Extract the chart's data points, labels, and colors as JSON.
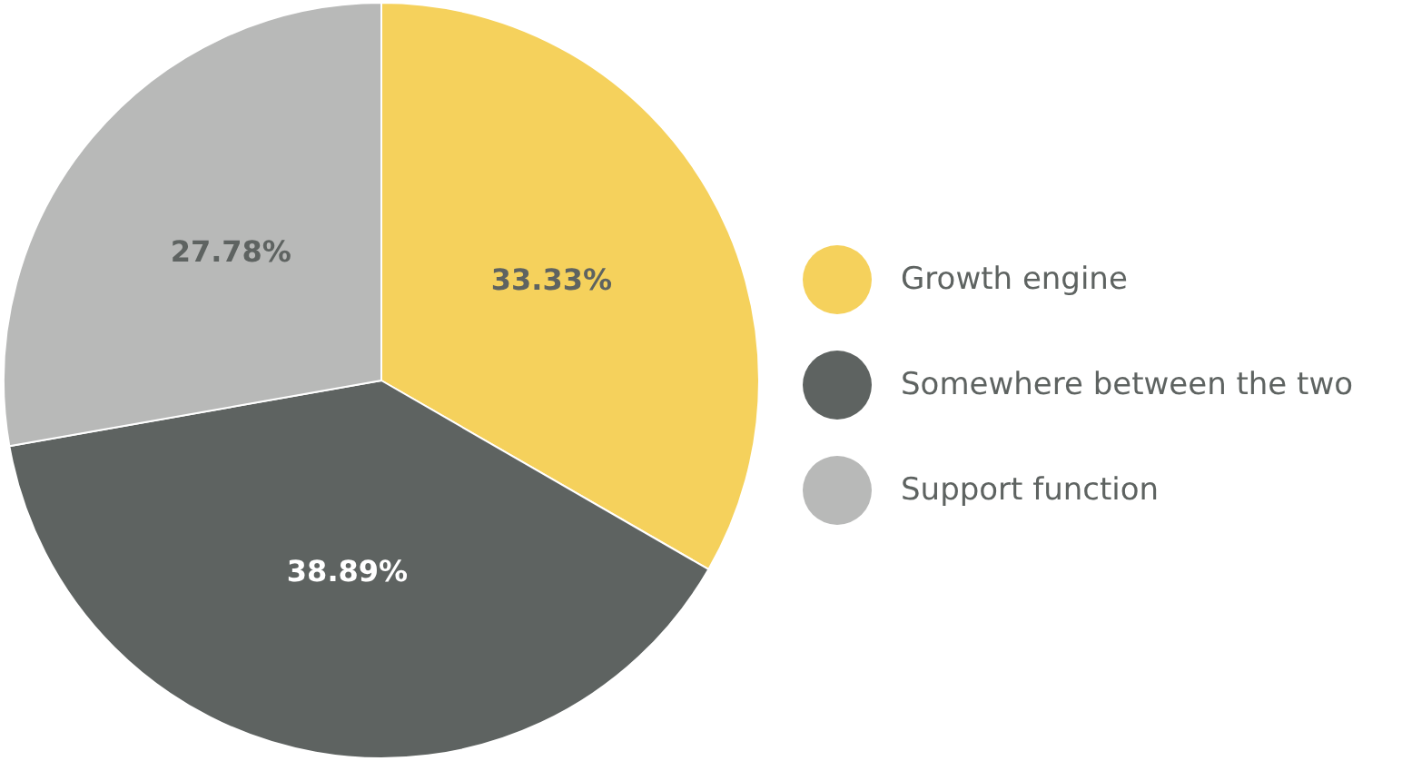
{
  "chart_data": {
    "type": "pie",
    "categories": [
      "Growth engine",
      "Somewhere between the two",
      "Support function"
    ],
    "values": [
      33.33,
      38.89,
      27.78
    ],
    "colors": [
      "#f5d15c",
      "#5e6361",
      "#b8b9b8"
    ],
    "value_labels": [
      "33.33%",
      "38.89%",
      "27.78%"
    ],
    "legend": "right"
  }
}
